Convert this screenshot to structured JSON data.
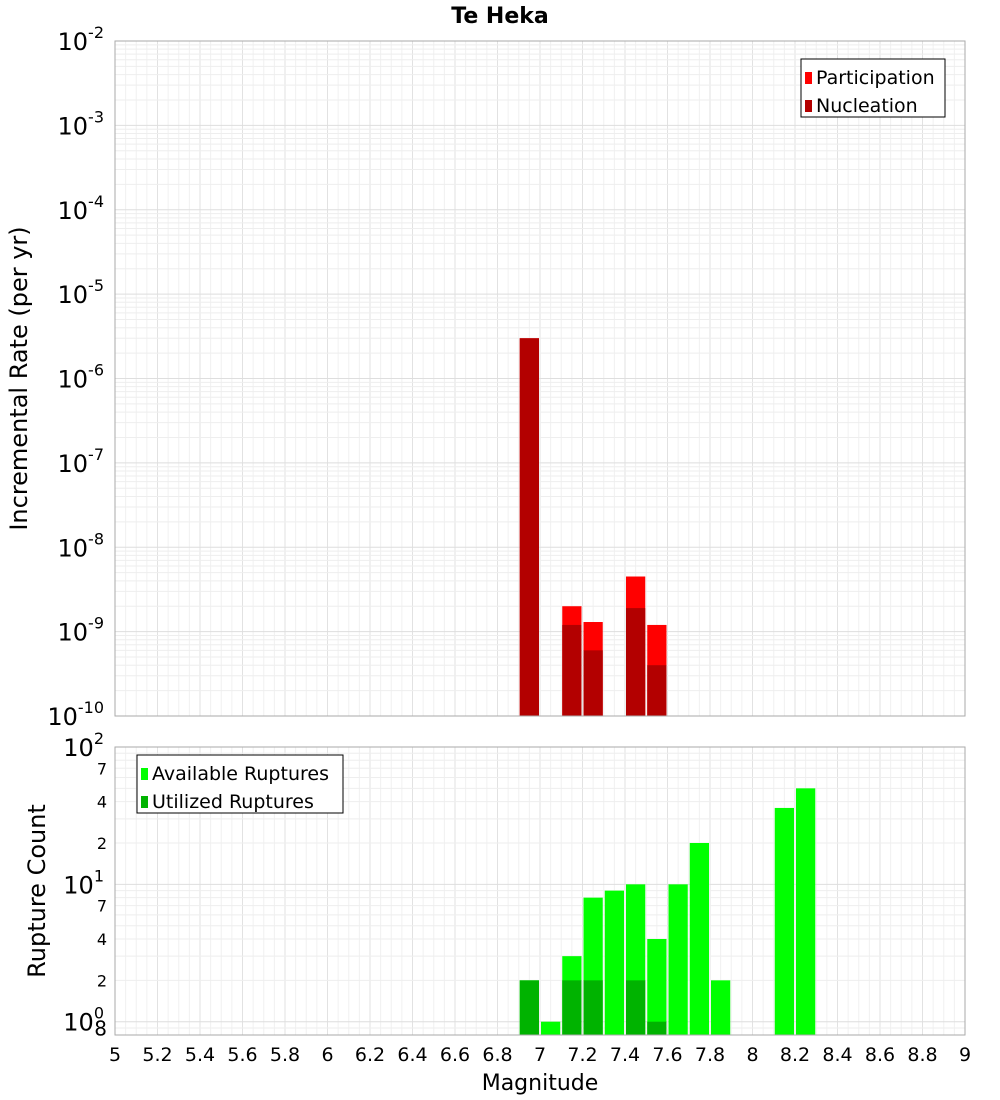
{
  "chart_data": {
    "title": "Te Heka",
    "xlabel": "Magnitude",
    "x_ticks": [
      "5",
      "5.2",
      "5.4",
      "5.6",
      "5.8",
      "6",
      "6.2",
      "6.4",
      "6.6",
      "6.8",
      "7",
      "7.2",
      "7.4",
      "7.6",
      "7.8",
      "8",
      "8.2",
      "8.4",
      "8.6",
      "8.8",
      "9"
    ],
    "xlim": [
      5,
      9
    ],
    "grid": true,
    "panels": [
      {
        "type": "bar",
        "ylabel": "Incremental Rate (per yr)",
        "yscale": "log",
        "ylim": [
          1e-10,
          0.01
        ],
        "y_tick_labels": [
          {
            "base": "10",
            "exp": "-10"
          },
          {
            "base": "10",
            "exp": "-9"
          },
          {
            "base": "10",
            "exp": "-8"
          },
          {
            "base": "10",
            "exp": "-7"
          },
          {
            "base": "10",
            "exp": "-6"
          },
          {
            "base": "10",
            "exp": "-5"
          },
          {
            "base": "10",
            "exp": "-4"
          },
          {
            "base": "10",
            "exp": "-3"
          },
          {
            "base": "10",
            "exp": "-2"
          }
        ],
        "legend_position": "top-right",
        "series": [
          {
            "name": "Participation",
            "color": "#ff0000",
            "points": [
              {
                "x": 6.95,
                "y": 3e-06
              },
              {
                "x": 7.15,
                "y": 2e-09
              },
              {
                "x": 7.25,
                "y": 1.3e-09
              },
              {
                "x": 7.45,
                "y": 4.5e-09
              },
              {
                "x": 7.55,
                "y": 1.2e-09
              }
            ]
          },
          {
            "name": "Nucleation",
            "color": "#b30000",
            "points": [
              {
                "x": 6.95,
                "y": 3e-06
              },
              {
                "x": 7.15,
                "y": 1.2e-09
              },
              {
                "x": 7.25,
                "y": 6e-10
              },
              {
                "x": 7.45,
                "y": 1.9e-09
              },
              {
                "x": 7.55,
                "y": 4e-10
              }
            ]
          }
        ]
      },
      {
        "type": "bar",
        "ylabel": "Rupture Count",
        "yscale": "log",
        "ylim": [
          0.8,
          100
        ],
        "y_tick_labels": [
          {
            "base": "10",
            "exp": "0",
            "sub": "8",
            "at": 1
          },
          {
            "base": "",
            "exp": "",
            "minor": "2",
            "at": 2
          },
          {
            "base": "",
            "exp": "",
            "minor": "4",
            "at": 4
          },
          {
            "base": "",
            "exp": "",
            "minor": "7",
            "at": 7
          },
          {
            "base": "10",
            "exp": "1",
            "at": 10
          },
          {
            "base": "",
            "exp": "",
            "minor": "2",
            "at": 20
          },
          {
            "base": "",
            "exp": "",
            "minor": "4",
            "at": 40
          },
          {
            "base": "",
            "exp": "",
            "minor": "7",
            "at": 70
          },
          {
            "base": "10",
            "exp": "2",
            "at": 100
          }
        ],
        "legend_position": "top-left",
        "series": [
          {
            "name": "Available Ruptures",
            "color": "#00ff00",
            "points": [
              {
                "x": 6.95,
                "y": 2
              },
              {
                "x": 7.05,
                "y": 1
              },
              {
                "x": 7.15,
                "y": 3
              },
              {
                "x": 7.25,
                "y": 8
              },
              {
                "x": 7.35,
                "y": 9
              },
              {
                "x": 7.45,
                "y": 10
              },
              {
                "x": 7.55,
                "y": 4
              },
              {
                "x": 7.65,
                "y": 10
              },
              {
                "x": 7.75,
                "y": 20
              },
              {
                "x": 7.85,
                "y": 2
              },
              {
                "x": 8.15,
                "y": 36
              },
              {
                "x": 8.25,
                "y": 50
              }
            ]
          },
          {
            "name": "Utilized Ruptures",
            "color": "#00b300",
            "points": [
              {
                "x": 6.95,
                "y": 2
              },
              {
                "x": 7.15,
                "y": 2
              },
              {
                "x": 7.25,
                "y": 2
              },
              {
                "x": 7.45,
                "y": 2
              },
              {
                "x": 7.55,
                "y": 1
              }
            ]
          }
        ]
      }
    ]
  }
}
